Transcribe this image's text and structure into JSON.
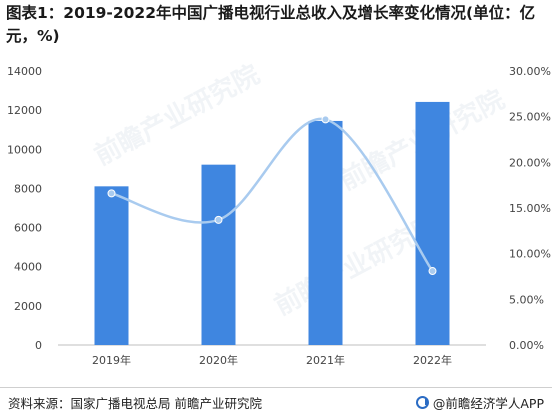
{
  "title": "图表1：2019-2022年中国广播电视行业总收入及增长率变化情况(单位：亿元，%)",
  "source": "资料来源：国家广播电视总局 前瞻产业研究院",
  "brand": "@前瞻经济学人APP",
  "watermark": "前瞻产业研究院",
  "colors": {
    "bar": "#3f86e0",
    "line": "#a9cbef",
    "point": "#a9cbef",
    "grid": "#e6e6e6",
    "axis": "#bfbfbf"
  },
  "chart_data": {
    "type": "bar",
    "categories": [
      "2019年",
      "2020年",
      "2021年",
      "2022年"
    ],
    "series": [
      {
        "type": "bar",
        "axis": "left",
        "values": [
          8107,
          9214,
          11448,
          12420
        ]
      },
      {
        "type": "line",
        "axis": "right",
        "values": [
          16.6,
          13.7,
          24.7,
          8.1
        ]
      }
    ],
    "ylim_left": [
      0,
      14000
    ],
    "yticks_left": [
      "0",
      "2000",
      "4000",
      "6000",
      "8000",
      "10000",
      "12000",
      "14000"
    ],
    "ylim_right": [
      0,
      30
    ],
    "yticks_right": [
      "0.00%",
      "5.00%",
      "10.00%",
      "15.00%",
      "20.00%",
      "25.00%",
      "30.00%"
    ],
    "grid": false
  }
}
